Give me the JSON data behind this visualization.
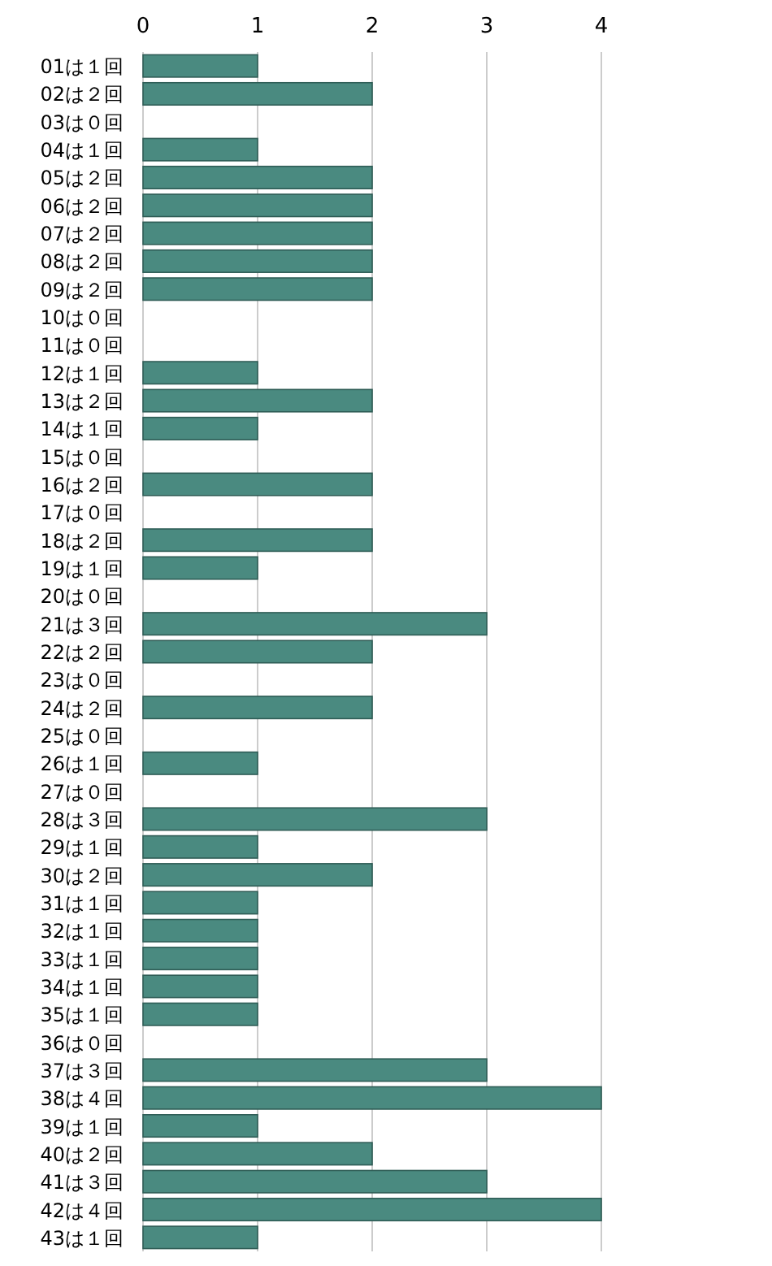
{
  "chart_data": {
    "type": "bar",
    "orientation": "horizontal",
    "categories": [
      "01は１回",
      "02は２回",
      "03は０回",
      "04は１回",
      "05は２回",
      "06は２回",
      "07は２回",
      "08は２回",
      "09は２回",
      "10は０回",
      "11は０回",
      "12は１回",
      "13は２回",
      "14は１回",
      "15は０回",
      "16は２回",
      "17は０回",
      "18は２回",
      "19は１回",
      "20は０回",
      "21は３回",
      "22は２回",
      "23は０回",
      "24は２回",
      "25は０回",
      "26は１回",
      "27は０回",
      "28は３回",
      "29は１回",
      "30は２回",
      "31は１回",
      "32は１回",
      "33は１回",
      "34は１回",
      "35は１回",
      "36は０回",
      "37は３回",
      "38は４回",
      "39は１回",
      "40は２回",
      "41は３回",
      "42は４回",
      "43は１回"
    ],
    "values": [
      1,
      2,
      0,
      1,
      2,
      2,
      2,
      2,
      2,
      0,
      0,
      1,
      2,
      1,
      0,
      2,
      0,
      2,
      1,
      0,
      3,
      2,
      0,
      2,
      0,
      1,
      0,
      3,
      1,
      2,
      1,
      1,
      1,
      1,
      1,
      0,
      3,
      4,
      1,
      2,
      3,
      4,
      1
    ],
    "color": "#4a8a80",
    "xlim": [
      0,
      4
    ],
    "xticks": [
      0,
      1,
      2,
      3,
      4
    ],
    "grid": "x"
  }
}
